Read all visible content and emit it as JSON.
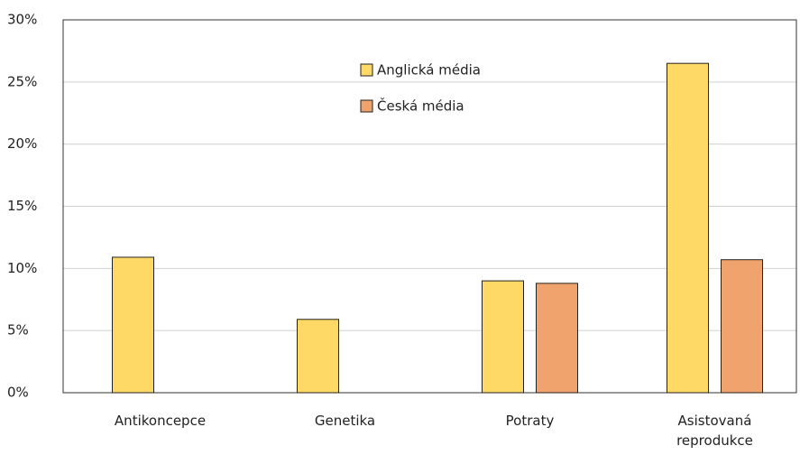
{
  "chart_data": {
    "type": "bar",
    "categories": [
      "Antikoncepce",
      "Genetika",
      "Potraty",
      "Asistovaná reprodukce"
    ],
    "series": [
      {
        "name": "Anglická média",
        "color": "#ffd966",
        "values": [
          10.9,
          5.9,
          9.0,
          26.5
        ]
      },
      {
        "name": "Česká média",
        "color": "#f0a36c",
        "values": [
          0,
          0,
          8.8,
          10.7
        ]
      }
    ],
    "ylim": [
      0,
      30
    ],
    "yticks": [
      {
        "value": 0,
        "label": "0%"
      },
      {
        "value": 5,
        "label": "5%"
      },
      {
        "value": 10,
        "label": "10%"
      },
      {
        "value": 15,
        "label": "15%"
      },
      {
        "value": 20,
        "label": "20%"
      },
      {
        "value": 25,
        "label": "25%"
      },
      {
        "value": 30,
        "label": "30%"
      }
    ],
    "grid": true
  }
}
